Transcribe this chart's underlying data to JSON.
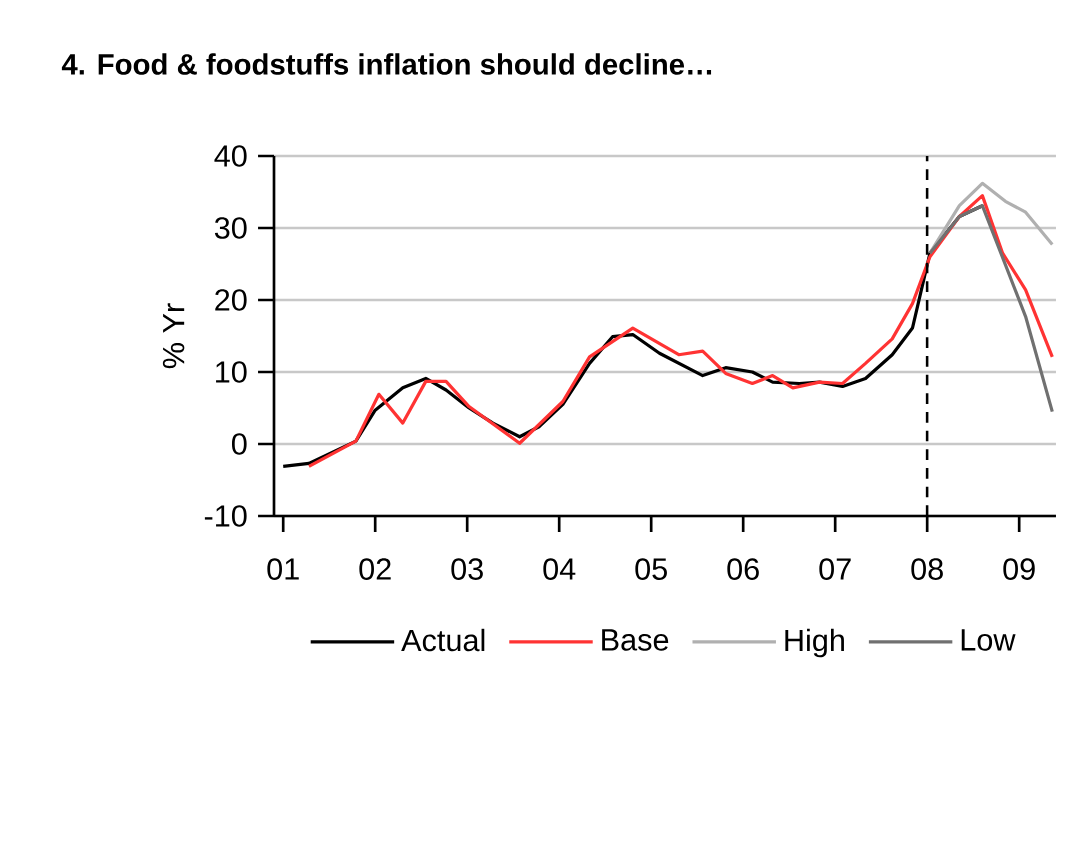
{
  "chart_data": {
    "type": "line",
    "title": "4. Food & foodstuffs inflation should decline…",
    "ylabel": "% Yr",
    "xlim": [
      2000.9,
      2009.4
    ],
    "xticks": [
      {
        "value": 2001,
        "label": "01"
      },
      {
        "value": 2002,
        "label": "02"
      },
      {
        "value": 2003,
        "label": "03"
      },
      {
        "value": 2004,
        "label": "04"
      },
      {
        "value": 2005,
        "label": "05"
      },
      {
        "value": 2006,
        "label": "06"
      },
      {
        "value": 2007,
        "label": "07"
      },
      {
        "value": 2008,
        "label": "08"
      },
      {
        "value": 2009,
        "label": "09"
      }
    ],
    "ylim": [
      -10,
      40
    ],
    "yticks": [
      -10,
      0,
      10,
      20,
      30,
      40
    ],
    "grid": "y",
    "legend": "bottom",
    "line_style": "solid",
    "marker": "none",
    "ref_lines": [
      {
        "axis": "x",
        "value": 2008,
        "line_style": "dashed",
        "color": "#000000"
      }
    ],
    "series": [
      {
        "name": "Actual",
        "color": "#000000",
        "x": [
          2001.0,
          2001.28,
          2001.79,
          2002.0,
          2002.3,
          2002.55,
          2002.77,
          2003.02,
          2003.28,
          2003.57,
          2003.78,
          2004.04,
          2004.33,
          2004.58,
          2004.8,
          2005.09,
          2005.56,
          2005.81,
          2006.1,
          2006.32,
          2006.61,
          2006.83,
          2007.08,
          2007.33,
          2007.62,
          2007.84,
          2008.03,
          2008.35,
          2008.6
        ],
        "values": [
          -3.1,
          -2.7,
          0.4,
          4.7,
          7.8,
          9.1,
          7.5,
          5.0,
          2.9,
          1.0,
          2.4,
          5.5,
          11.2,
          14.9,
          15.2,
          12.6,
          9.5,
          10.6,
          10.0,
          8.6,
          8.4,
          8.6,
          8.0,
          9.1,
          12.4,
          16.1,
          26.5,
          31.6,
          33.1
        ]
      },
      {
        "name": "Base",
        "color": "#ff3333",
        "x": [
          2001.28,
          2001.79,
          2002.04,
          2002.3,
          2002.55,
          2002.77,
          2003.02,
          2003.57,
          2004.04,
          2004.33,
          2004.8,
          2005.3,
          2005.56,
          2005.81,
          2006.1,
          2006.32,
          2006.54,
          2006.83,
          2007.08,
          2007.33,
          2007.62,
          2007.84,
          2008.03,
          2008.35,
          2008.6,
          2008.82,
          2009.07,
          2009.36
        ],
        "values": [
          -3.1,
          0.4,
          6.9,
          2.9,
          8.7,
          8.7,
          5.2,
          0.1,
          5.9,
          12.1,
          16.1,
          12.4,
          12.9,
          9.8,
          8.4,
          9.5,
          7.8,
          8.6,
          8.4,
          11.2,
          14.6,
          19.5,
          26.0,
          31.6,
          34.5,
          26.5,
          21.4,
          12.1
        ]
      },
      {
        "name": "High",
        "color": "#b0b0b0",
        "x": [
          2008.03,
          2008.35,
          2008.6,
          2008.85,
          2009.07,
          2009.36
        ],
        "values": [
          26.5,
          33.1,
          36.2,
          33.7,
          32.2,
          27.7
        ]
      },
      {
        "name": "Low",
        "color": "#707070",
        "x": [
          2008.03,
          2008.35,
          2008.6,
          2009.07,
          2009.36
        ],
        "values": [
          26.5,
          31.6,
          33.1,
          17.7,
          4.5
        ]
      }
    ]
  }
}
